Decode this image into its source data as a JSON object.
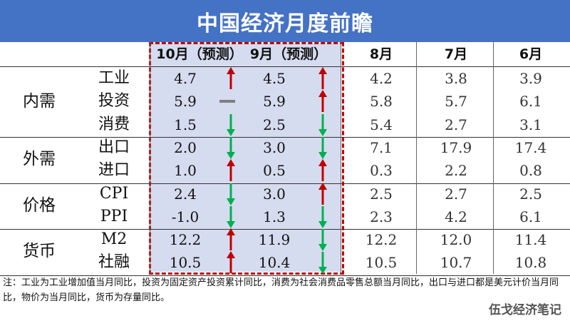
{
  "title": "中国经济月度前瞻",
  "columns": [
    "10月（预测）",
    "9月（预测）",
    "8月",
    "7月",
    "6月"
  ],
  "groups": [
    {
      "category": "内需",
      "rows": [
        {
          "label": "工业",
          "values": [
            "4.7",
            "4.5",
            "4.2",
            "3.8",
            "3.9"
          ],
          "trend": [
            "up",
            "up"
          ]
        },
        {
          "label": "投资",
          "values": [
            "5.9",
            "5.9",
            "5.8",
            "5.7",
            "6.1"
          ],
          "trend": [
            "flat",
            "up"
          ]
        },
        {
          "label": "消费",
          "values": [
            "1.5",
            "2.5",
            "5.4",
            "2.7",
            "3.1"
          ],
          "trend": [
            "down",
            "down"
          ]
        }
      ]
    },
    {
      "category": "外需",
      "rows": [
        {
          "label": "出口",
          "values": [
            "2.0",
            "3.0",
            "7.1",
            "17.9",
            "17.4"
          ],
          "trend": [
            "down",
            "down"
          ]
        },
        {
          "label": "进口",
          "values": [
            "1.0",
            "0.5",
            "0.3",
            "2.2",
            "0.8"
          ],
          "trend": [
            "up",
            "up"
          ]
        }
      ]
    },
    {
      "category": "价格",
      "rows": [
        {
          "label": "CPI",
          "values": [
            "2.4",
            "3.0",
            "2.5",
            "2.7",
            "2.5"
          ],
          "trend": [
            "down",
            "up"
          ]
        },
        {
          "label": "PPI",
          "values": [
            "-1.0",
            "1.3",
            "2.3",
            "4.2",
            "6.1"
          ],
          "trend": [
            "down",
            "down"
          ]
        }
      ]
    },
    {
      "category": "货币",
      "rows": [
        {
          "label": "M2",
          "values": [
            "12.2",
            "11.9",
            "12.2",
            "12.0",
            "11.4"
          ],
          "trend": [
            "up",
            "down"
          ]
        },
        {
          "label": "社融",
          "values": [
            "10.5",
            "10.4",
            "10.5",
            "10.7",
            "10.8"
          ],
          "trend": [
            "up",
            "down"
          ]
        }
      ]
    }
  ],
  "note": "注：工业为工业增加值当月同比，投资为固定资产投资累计同比，消费为社会消费品零售总额当月同比，出口与进口都是美元计价当月同比，物价为当月同比，货币为存量同比。",
  "brand": "伍戈经济笔记",
  "colors": {
    "header": "#4472c4",
    "up": "#c00000",
    "down": "#00b050",
    "flat": "#7f7f7f",
    "forecast_bg": "#d6dcef",
    "forecast_border": "#c00000"
  }
}
